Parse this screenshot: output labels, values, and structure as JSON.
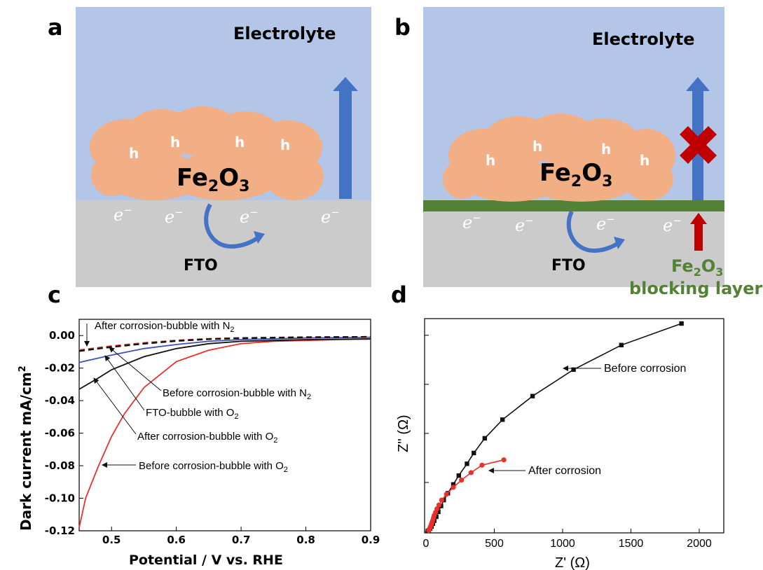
{
  "panel_a": {
    "letter": "a",
    "electrolyte_label": "Electrolyte",
    "material_main": "Fe",
    "material_sub1": "2",
    "material_mid": "O",
    "material_sub2": "3",
    "hole_label": "h",
    "electron_label": "e",
    "electron_sup": "−",
    "substrate_label": "FTO"
  },
  "panel_b": {
    "letter": "b",
    "electrolyte_label": "Electrolyte",
    "material_main": "Fe",
    "material_sub1": "2",
    "material_mid": "O",
    "material_sub2": "3",
    "hole_label": "h",
    "electron_label": "e",
    "electron_sup": "−",
    "substrate_label": "FTO",
    "blocking_main": "Fe",
    "blocking_sub1": "2",
    "blocking_mid": "O",
    "blocking_sub2": "3",
    "blocking_line2": "blocking layer"
  },
  "colors": {
    "electrolyte": "#b3c6e7",
    "substrate": "#cccbcb",
    "fe2o3": "#f2ae85",
    "blue_arrow": "#4472c4",
    "blocking_layer": "#538135",
    "blocking_text": "#548235",
    "cross": "#c00000",
    "red_curve": "#e8312b",
    "blue_curve": "#3f51b5",
    "black_curve": "#111111"
  },
  "chart_c": {
    "letter": "c",
    "ylabel_main": "Dark current mA/cm",
    "ylabel_sup": "2",
    "xlabel": "Potential / V vs. RHE",
    "x_ticks": [
      "0.5",
      "0.6",
      "0.7",
      "0.8",
      "0.9"
    ],
    "y_ticks": [
      "0.00",
      "-0.02",
      "-0.04",
      "-0.06",
      "-0.08",
      "-0.10",
      "-0.12"
    ],
    "annotations": [
      {
        "id": "n2-after",
        "main": "After corrosion-bubble with N",
        "sub": "2"
      },
      {
        "id": "n2-before",
        "main": "Before corrosion-bubble with N",
        "sub": "2"
      },
      {
        "id": "fto",
        "main": "FTO-bubble with O",
        "sub": "2"
      },
      {
        "id": "o2-after",
        "main": "After corrosion-bubble with O",
        "sub": "2"
      },
      {
        "id": "o2-before",
        "main": "Before corrosion-bubble with O",
        "sub": "2"
      }
    ]
  },
  "chart_d": {
    "letter": "d",
    "xlabel": "Z' (Ω)",
    "ylabel": "Z'' (Ω)",
    "x_ticks": [
      "0",
      "500",
      "1000",
      "1500",
      "2000"
    ],
    "annotations": [
      {
        "id": "before",
        "text": "Before corrosion"
      },
      {
        "id": "after",
        "text": "After corrosion"
      }
    ]
  },
  "chart_data": [
    {
      "type": "line",
      "panel": "c",
      "xlabel": "Potential / V vs. RHE",
      "ylabel": "Dark current mA/cm2",
      "xlim": [
        0.45,
        0.9
      ],
      "ylim": [
        -0.12,
        0.01
      ],
      "series": [
        {
          "name": "Before corrosion-bubble with O2",
          "color": "#e8312b",
          "style": "solid",
          "x": [
            0.45,
            0.46,
            0.48,
            0.5,
            0.52,
            0.55,
            0.6,
            0.65,
            0.7,
            0.75,
            0.8,
            0.85,
            0.9
          ],
          "y": [
            -0.118,
            -0.1,
            -0.08,
            -0.062,
            -0.048,
            -0.032,
            -0.016,
            -0.009,
            -0.005,
            -0.0035,
            -0.003,
            -0.0025,
            -0.0022
          ]
        },
        {
          "name": "After corrosion-bubble with O2",
          "color": "#111111",
          "style": "solid",
          "x": [
            0.45,
            0.48,
            0.5,
            0.55,
            0.6,
            0.65,
            0.7,
            0.8,
            0.9
          ],
          "y": [
            -0.033,
            -0.026,
            -0.021,
            -0.013,
            -0.008,
            -0.005,
            -0.0035,
            -0.0025,
            -0.002
          ]
        },
        {
          "name": "FTO-bubble with O2",
          "color": "#3f51b5",
          "style": "solid",
          "x": [
            0.45,
            0.5,
            0.55,
            0.6,
            0.65,
            0.7,
            0.8,
            0.9
          ],
          "y": [
            -0.0165,
            -0.012,
            -0.008,
            -0.0055,
            -0.0035,
            -0.0025,
            -0.0015,
            -0.001
          ]
        },
        {
          "name": "Before corrosion-bubble with N2",
          "color": "#e8312b",
          "style": "dashed",
          "x": [
            0.45,
            0.5,
            0.55,
            0.6,
            0.65,
            0.7,
            0.8,
            0.9
          ],
          "y": [
            -0.009,
            -0.0065,
            -0.0045,
            -0.003,
            -0.002,
            -0.0015,
            -0.001,
            -0.0008
          ]
        },
        {
          "name": "After corrosion-bubble with N2",
          "color": "#111111",
          "style": "dashed",
          "x": [
            0.45,
            0.5,
            0.55,
            0.6,
            0.65,
            0.7,
            0.8,
            0.9
          ],
          "y": [
            -0.0095,
            -0.007,
            -0.005,
            -0.0033,
            -0.0022,
            -0.0016,
            -0.001,
            -0.0008
          ]
        }
      ]
    },
    {
      "type": "scatter",
      "panel": "d",
      "xlabel": "Z' (Ω)",
      "ylabel": "Z'' (Ω)",
      "xlim": [
        0,
        2200
      ],
      "ylim": [
        0,
        1100
      ],
      "series": [
        {
          "name": "Before corrosion",
          "color": "#111111",
          "marker": "square",
          "x": [
            20,
            30,
            40,
            50,
            60,
            75,
            90,
            110,
            130,
            160,
            200,
            240,
            300,
            350,
            430,
            560,
            780,
            1080,
            1430,
            1870
          ],
          "y": [
            5,
            15,
            25,
            40,
            55,
            75,
            100,
            130,
            160,
            195,
            240,
            285,
            345,
            400,
            475,
            570,
            690,
            825,
            950,
            1060
          ]
        },
        {
          "name": "After corrosion",
          "color": "#e8312b",
          "marker": "circle",
          "x": [
            20,
            25,
            30,
            35,
            40,
            45,
            50,
            55,
            60,
            70,
            80,
            95,
            115,
            150,
            200,
            260,
            330,
            410,
            570
          ],
          "y": [
            5,
            12,
            20,
            28,
            38,
            48,
            58,
            70,
            82,
            98,
            115,
            135,
            160,
            190,
            225,
            262,
            300,
            338,
            365
          ]
        }
      ]
    }
  ]
}
